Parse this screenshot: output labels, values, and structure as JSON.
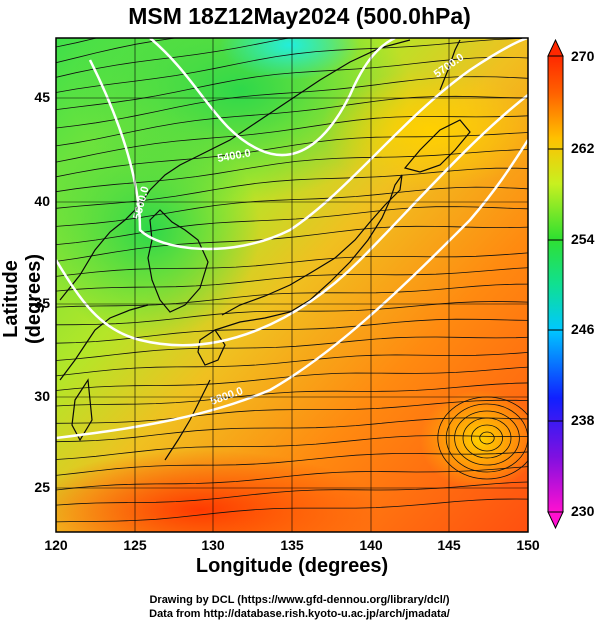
{
  "title": "MSM 18Z12May2024 (500.0hPa)",
  "x_axis": {
    "label": "Longitude (degrees)",
    "ticks": [
      "120",
      "125",
      "130",
      "135",
      "140",
      "145",
      "150"
    ]
  },
  "y_axis": {
    "label": "Latitude  (degrees)",
    "ticks": [
      "25",
      "30",
      "35",
      "40",
      "45"
    ]
  },
  "colorbar": {
    "ticks": [
      "270",
      "262",
      "254",
      "246",
      "238",
      "230"
    ],
    "min": 230,
    "max": 270,
    "colors": [
      "#ff00c8",
      "#1010ff",
      "#00c8ff",
      "#00ff80",
      "#c8ff00",
      "#ff8c00",
      "#ff2800"
    ]
  },
  "contours": [
    {
      "label": "5400.0",
      "value": 5400
    },
    {
      "label": "5500.0",
      "value": 5500
    },
    {
      "label": "5700.0",
      "value": 5700
    },
    {
      "label": "5800.0",
      "value": 5800
    }
  ],
  "credits": {
    "line1": "Drawing by DCL (https://www.gfd-dennou.org/library/dcl/)",
    "line2": "Data from http://database.rish.kyoto-u.ac.jp/arch/jmadata/"
  },
  "chart_data": {
    "type": "heatmap",
    "variable": "temperature",
    "xlim": [
      120,
      150
    ],
    "ylim": [
      22.5,
      47.5
    ],
    "color_range": [
      230,
      270
    ],
    "field_samples": [
      {
        "lon": 133,
        "lat": 47,
        "value": 246
      },
      {
        "lon": 125,
        "lat": 43,
        "value": 254
      },
      {
        "lon": 122,
        "lat": 33,
        "value": 256
      },
      {
        "lon": 137,
        "lat": 37,
        "value": 260
      },
      {
        "lon": 146,
        "lat": 45,
        "value": 260
      },
      {
        "lon": 140,
        "lat": 30,
        "value": 264
      },
      {
        "lon": 130,
        "lat": 24,
        "value": 266
      },
      {
        "lon": 148,
        "lat": 28,
        "value": 263
      }
    ]
  }
}
